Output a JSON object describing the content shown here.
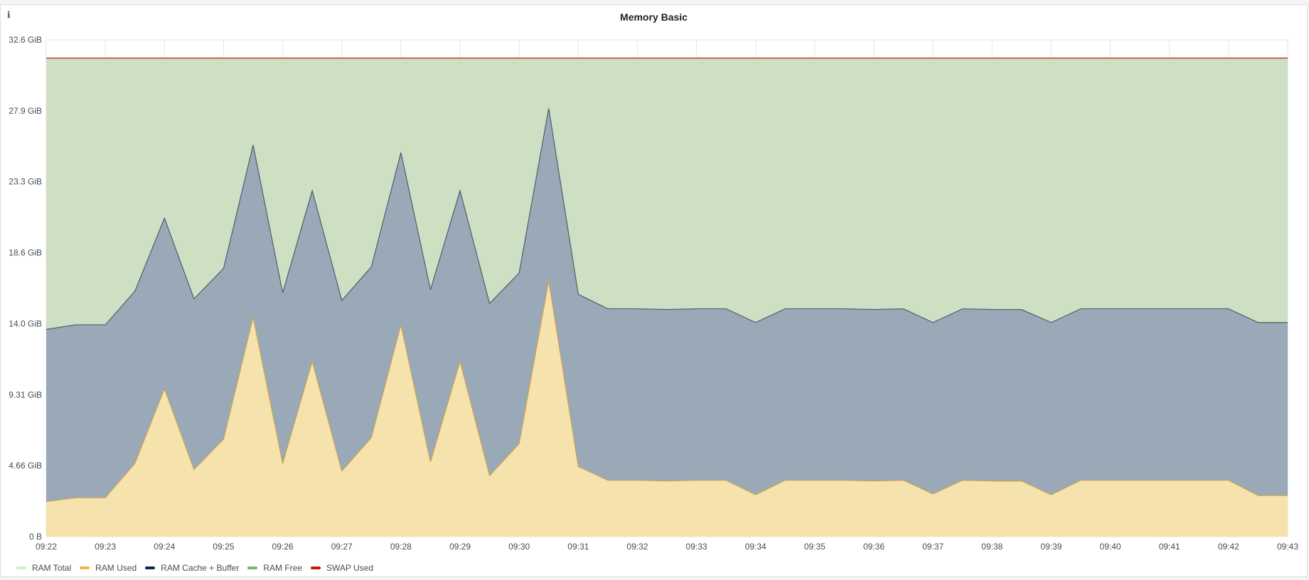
{
  "panel": {
    "title": "Memory Basic",
    "info_glyph": "i"
  },
  "chart_data": {
    "type": "area",
    "title": "Memory Basic",
    "x": [
      "09:22:00",
      "09:22:30",
      "09:23:00",
      "09:23:30",
      "09:24:00",
      "09:24:30",
      "09:25:00",
      "09:25:30",
      "09:26:00",
      "09:26:30",
      "09:27:00",
      "09:27:30",
      "09:28:00",
      "09:28:30",
      "09:29:00",
      "09:29:30",
      "09:30:00",
      "09:30:30",
      "09:31:00",
      "09:31:30",
      "09:32:00",
      "09:32:30",
      "09:33:00",
      "09:33:30",
      "09:34:00",
      "09:34:30",
      "09:35:00",
      "09:35:30",
      "09:36:00",
      "09:36:30",
      "09:37:00",
      "09:37:30",
      "09:38:00",
      "09:38:30",
      "09:39:00",
      "09:39:30",
      "09:40:00",
      "09:40:30",
      "09:41:00",
      "09:41:30",
      "09:42:00",
      "09:42:30",
      "09:43:00"
    ],
    "x_ticks": [
      "09:22",
      "09:23",
      "09:24",
      "09:25",
      "09:26",
      "09:27",
      "09:28",
      "09:29",
      "09:30",
      "09:31",
      "09:32",
      "09:33",
      "09:34",
      "09:35",
      "09:36",
      "09:37",
      "09:38",
      "09:39",
      "09:40",
      "09:41",
      "09:42",
      "09:43"
    ],
    "y_ticks": [
      "0 B",
      "4.66 GiB",
      "9.31 GiB",
      "14.0 GiB",
      "18.6 GiB",
      "23.3 GiB",
      "27.9 GiB",
      "32.6 GiB"
    ],
    "y_unit": "GiB",
    "ylim": [
      0,
      32.6
    ],
    "grid": true,
    "legend_position": "bottom-left",
    "series": [
      {
        "name": "RAM Total",
        "color": "#c8f2c2",
        "values": [
          31.4,
          31.4,
          31.4,
          31.4,
          31.4,
          31.4,
          31.4,
          31.4,
          31.4,
          31.4,
          31.4,
          31.4,
          31.4,
          31.4,
          31.4,
          31.4,
          31.4,
          31.4,
          31.4,
          31.4,
          31.4,
          31.4,
          31.4,
          31.4,
          31.4,
          31.4,
          31.4,
          31.4,
          31.4,
          31.4,
          31.4,
          31.4,
          31.4,
          31.4,
          31.4,
          31.4,
          31.4,
          31.4,
          31.4,
          31.4,
          31.4,
          31.4,
          31.4
        ]
      },
      {
        "name": "RAM Used",
        "color": "#eab839",
        "values": [
          2.3,
          2.55,
          2.55,
          4.8,
          9.7,
          4.4,
          6.4,
          14.4,
          4.8,
          11.5,
          4.3,
          6.5,
          13.9,
          4.9,
          11.5,
          4.0,
          6.1,
          16.8,
          4.6,
          3.7,
          3.7,
          3.65,
          3.7,
          3.7,
          2.75,
          3.7,
          3.7,
          3.7,
          3.65,
          3.7,
          2.8,
          3.7,
          3.65,
          3.65,
          2.75,
          3.7,
          3.7,
          3.7,
          3.7,
          3.7,
          3.7,
          2.7,
          2.7
        ]
      },
      {
        "name": "RAM Cache + Buffer",
        "color": "#052b51",
        "values": [
          13.6,
          13.9,
          13.9,
          16.1,
          20.9,
          15.6,
          17.6,
          25.7,
          16.0,
          22.7,
          15.5,
          17.7,
          25.2,
          16.2,
          22.7,
          15.3,
          17.3,
          28.1,
          15.9,
          14.95,
          14.95,
          14.9,
          14.95,
          14.95,
          14.05,
          14.95,
          14.95,
          14.95,
          14.9,
          14.95,
          14.05,
          14.95,
          14.9,
          14.9,
          14.05,
          14.95,
          14.95,
          14.95,
          14.95,
          14.95,
          14.95,
          14.05,
          14.05
        ]
      },
      {
        "name": "RAM Free",
        "color": "#7eb26d",
        "values": [
          31.4,
          31.4,
          31.4,
          31.4,
          31.4,
          31.4,
          31.4,
          31.4,
          31.4,
          31.4,
          31.4,
          31.4,
          31.4,
          31.4,
          31.4,
          31.4,
          31.4,
          31.4,
          31.4,
          31.4,
          31.4,
          31.4,
          31.4,
          31.4,
          31.4,
          31.4,
          31.4,
          31.4,
          31.4,
          31.4,
          31.4,
          31.4,
          31.4,
          31.4,
          31.4,
          31.4,
          31.4,
          31.4,
          31.4,
          31.4,
          31.4,
          31.4,
          31.4
        ]
      },
      {
        "name": "SWAP Used",
        "color": "#bf1b00",
        "values": [
          31.4,
          31.4,
          31.4,
          31.4,
          31.4,
          31.4,
          31.4,
          31.4,
          31.4,
          31.4,
          31.4,
          31.4,
          31.4,
          31.4,
          31.4,
          31.4,
          31.4,
          31.4,
          31.4,
          31.4,
          31.4,
          31.4,
          31.4,
          31.4,
          31.4,
          31.4,
          31.4,
          31.4,
          31.4,
          31.4,
          31.4,
          31.4,
          31.4,
          31.4,
          31.4,
          31.4,
          31.4,
          31.4,
          31.4,
          31.4,
          31.4,
          31.4,
          31.4
        ]
      }
    ]
  },
  "legend": [
    {
      "label": "RAM Total",
      "color": "#c8f2c2"
    },
    {
      "label": "RAM Used",
      "color": "#eab839"
    },
    {
      "label": "RAM Cache + Buffer",
      "color": "#052b51"
    },
    {
      "label": "RAM Free",
      "color": "#7eb26d"
    },
    {
      "label": "SWAP Used",
      "color": "#bf1b00"
    }
  ],
  "colors": {
    "free_fill": "#cde0c3",
    "cache_fill": "#9aa9b7",
    "used_fill": "#f6e2ad",
    "cache_line": "#4e5d6d",
    "used_line": "#c9a454",
    "swap_line": "#bf1b00",
    "grid": "#e4e6e8"
  }
}
